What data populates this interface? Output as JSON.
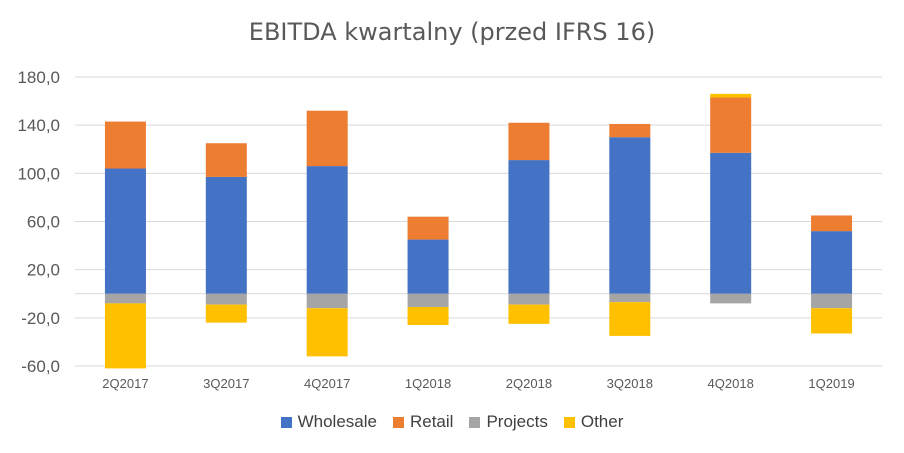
{
  "chart_data": {
    "type": "bar",
    "stacked": true,
    "title": "EBITDA kwartalny (przed IFRS 16)",
    "xlabel": "",
    "ylabel": "",
    "ylim": [
      -60,
      180
    ],
    "yticks": [
      "180,0",
      "140,0",
      "100,0",
      "60,0",
      "20,0",
      "-20,0",
      "-60,0"
    ],
    "ytick_values": [
      180,
      140,
      100,
      60,
      20,
      -20,
      -60
    ],
    "grid": true,
    "legend_position": "bottom",
    "categories": [
      "2Q2017",
      "3Q2017",
      "4Q2017",
      "1Q2018",
      "2Q2018",
      "3Q2018",
      "4Q2018",
      "1Q2019"
    ],
    "series": [
      {
        "name": "Wholesale",
        "color": "#4472C4",
        "values": [
          104,
          97,
          106,
          45,
          111,
          130,
          117,
          52
        ]
      },
      {
        "name": "Retail",
        "color": "#ED7D31",
        "values": [
          39,
          28,
          46,
          19,
          31,
          11,
          46,
          13
        ]
      },
      {
        "name": "Projects",
        "color": "#A5A5A5",
        "values": [
          -8,
          -9,
          -12,
          -11,
          -9,
          -7,
          -8,
          -12
        ]
      },
      {
        "name": "Other",
        "color": "#FFC000",
        "values": [
          -54,
          -15,
          -40,
          -15,
          -16,
          -28,
          0,
          -21
        ]
      },
      {
        "name": "Other",
        "color": "#FFC000",
        "values": [
          0,
          0,
          0,
          0,
          0,
          0,
          3,
          0
        ]
      }
    ]
  }
}
